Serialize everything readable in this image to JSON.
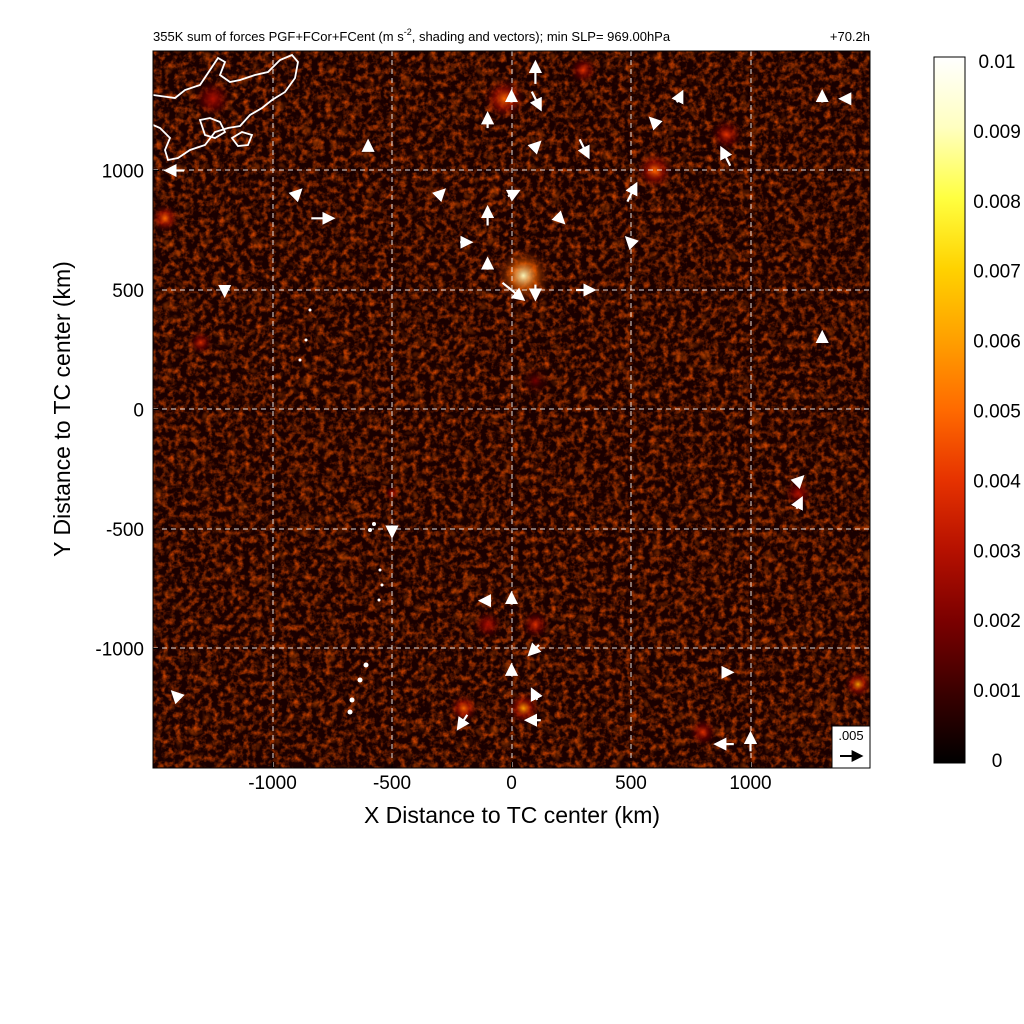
{
  "chart_data": {
    "type": "heatmap",
    "title": "355K sum of forces PGF+FCor+FCent (m s",
    "title_sup": "-2",
    "title_rest": ", shading and vectors); min SLP= 969.00hPa",
    "forecast_time": "+70.2h",
    "xlabel": "X Distance to TC center (km)",
    "ylabel": "Y Distance to TC center (km)",
    "xlim": [
      -1500,
      1500
    ],
    "ylim": [
      -1500,
      1500
    ],
    "x_ticks": [
      -1000,
      -500,
      0,
      500,
      1000
    ],
    "y_ticks": [
      -1000,
      -500,
      0,
      500,
      1000
    ],
    "x_tick_labels": [
      "-1000",
      "-500",
      "0",
      "500",
      "1000"
    ],
    "y_tick_labels": [
      "-1000",
      "-500",
      "0",
      "500",
      "1000"
    ],
    "grid": "dashed white",
    "colorbar": {
      "min": 0,
      "max": 0.01,
      "tick_labels": [
        "0.01",
        "0.009",
        "0.008",
        "0.007",
        "0.006",
        "0.005",
        "0.004",
        "0.003",
        "0.002",
        "0.001",
        "0"
      ],
      "tick_values": [
        0.01,
        0.009,
        0.008,
        0.007,
        0.006,
        0.005,
        0.004,
        0.003,
        0.002,
        0.001,
        0
      ],
      "colormap": [
        "#000000",
        "#3a0000",
        "#7a0000",
        "#b51000",
        "#e63200",
        "#ff6a00",
        "#ffa000",
        "#ffd200",
        "#ffff40",
        "#ffffc0",
        "#ffffff"
      ]
    },
    "reference_vector": {
      "label": ".005",
      "value": 0.005
    },
    "hotspots": [
      {
        "x": 50,
        "y": 560,
        "value": 0.009,
        "r": 120
      },
      {
        "x": -30,
        "y": 1300,
        "value": 0.005,
        "r": 90
      },
      {
        "x": 600,
        "y": 1000,
        "value": 0.005,
        "r": 80
      },
      {
        "x": 900,
        "y": 1150,
        "value": 0.004,
        "r": 70
      },
      {
        "x": -1450,
        "y": 800,
        "value": 0.005,
        "r": 60
      },
      {
        "x": -1300,
        "y": 280,
        "value": 0.004,
        "r": 50
      },
      {
        "x": -200,
        "y": -1250,
        "value": 0.005,
        "r": 60
      },
      {
        "x": 50,
        "y": -1250,
        "value": 0.006,
        "r": 70
      },
      {
        "x": 100,
        "y": -900,
        "value": 0.004,
        "r": 60
      },
      {
        "x": -100,
        "y": -900,
        "value": 0.003,
        "r": 60
      },
      {
        "x": 1450,
        "y": -1150,
        "value": 0.006,
        "r": 60
      },
      {
        "x": 800,
        "y": -1350,
        "value": 0.004,
        "r": 60
      },
      {
        "x": -500,
        "y": -350,
        "value": 0.004,
        "r": 30
      },
      {
        "x": 1200,
        "y": -350,
        "value": 0.003,
        "r": 60
      },
      {
        "x": 100,
        "y": 120,
        "value": 0.002,
        "r": 60
      },
      {
        "x": -1250,
        "y": 1300,
        "value": 0.003,
        "r": 80
      },
      {
        "x": 300,
        "y": 1420,
        "value": 0.004,
        "r": 60
      }
    ],
    "vectors": [
      {
        "x": 100,
        "y": 1400,
        "u": 0.0,
        "v": 0.005
      },
      {
        "x": 100,
        "y": 1300,
        "u": 0.002,
        "v": -0.004
      },
      {
        "x": 300,
        "y": 1100,
        "u": 0.002,
        "v": -0.004
      },
      {
        "x": 500,
        "y": 900,
        "u": 0.002,
        "v": 0.004
      },
      {
        "x": 900,
        "y": 1050,
        "u": -0.002,
        "v": 0.004
      },
      {
        "x": -800,
        "y": 800,
        "u": 0.005,
        "v": 0.0
      },
      {
        "x": -1400,
        "y": 1000,
        "u": -0.004,
        "v": 0.0
      },
      {
        "x": -100,
        "y": 800,
        "u": 0.0,
        "v": 0.004
      },
      {
        "x": -100,
        "y": 1200,
        "u": 0.0,
        "v": 0.003
      },
      {
        "x": 0,
        "y": 500,
        "u": 0.005,
        "v": -0.004
      },
      {
        "x": 100,
        "y": 500,
        "u": 0.0,
        "v": -0.003
      },
      {
        "x": 300,
        "y": 500,
        "u": 0.004,
        "v": 0.0
      },
      {
        "x": 0,
        "y": 1300,
        "u": 0.0,
        "v": 0.002
      },
      {
        "x": 100,
        "y": 1100,
        "u": 0.001,
        "v": 0.001
      },
      {
        "x": 700,
        "y": 1300,
        "u": 0.001,
        "v": 0.002
      },
      {
        "x": 1300,
        "y": 1300,
        "u": 0.0,
        "v": 0.002
      },
      {
        "x": -200,
        "y": 700,
        "u": 0.002,
        "v": 0.0
      },
      {
        "x": -100,
        "y": 600,
        "u": 0.0,
        "v": 0.002
      },
      {
        "x": 0,
        "y": 900,
        "u": 0.002,
        "v": 0.001
      },
      {
        "x": 1200,
        "y": -400,
        "u": 0.001,
        "v": 0.002
      },
      {
        "x": 1200,
        "y": -300,
        "u": 0.001,
        "v": 0.001
      },
      {
        "x": -200,
        "y": -1300,
        "u": -0.002,
        "v": -0.003
      },
      {
        "x": 100,
        "y": -1300,
        "u": -0.003,
        "v": 0.0
      },
      {
        "x": 900,
        "y": -1400,
        "u": -0.004,
        "v": 0.0
      },
      {
        "x": 1000,
        "y": -1400,
        "u": 0.0,
        "v": 0.004
      },
      {
        "x": 100,
        "y": -1000,
        "u": -0.002,
        "v": -0.002
      },
      {
        "x": -100,
        "y": -800,
        "u": -0.002,
        "v": 0.0
      },
      {
        "x": 0,
        "y": -800,
        "u": 0.0,
        "v": 0.002
      },
      {
        "x": 100,
        "y": -1200,
        "u": -0.001,
        "v": 0.002
      },
      {
        "x": 0,
        "y": -1100,
        "u": 0.0,
        "v": 0.002
      },
      {
        "x": -500,
        "y": -500,
        "u": 0.0,
        "v": -0.002
      },
      {
        "x": -300,
        "y": 900,
        "u": 0.001,
        "v": 0.001
      },
      {
        "x": -900,
        "y": 900,
        "u": 0.001,
        "v": 0.001
      },
      {
        "x": -600,
        "y": 1100,
        "u": 0.0,
        "v": 0.001
      },
      {
        "x": 500,
        "y": 700,
        "u": -0.001,
        "v": 0.001
      },
      {
        "x": 200,
        "y": 800,
        "u": 0.001,
        "v": -0.001
      },
      {
        "x": 600,
        "y": 1200,
        "u": -0.001,
        "v": 0.001
      },
      {
        "x": -1200,
        "y": 500,
        "u": 0.0,
        "v": -0.001
      },
      {
        "x": 1400,
        "y": 1300,
        "u": -0.001,
        "v": 0.0
      },
      {
        "x": 900,
        "y": -1100,
        "u": 0.001,
        "v": 0.0
      },
      {
        "x": -1400,
        "y": -1200,
        "u": -0.001,
        "v": 0.001
      },
      {
        "x": 1300,
        "y": 300,
        "u": 0.0,
        "v": 0.001
      }
    ],
    "coastline_color": "#ffffff"
  }
}
